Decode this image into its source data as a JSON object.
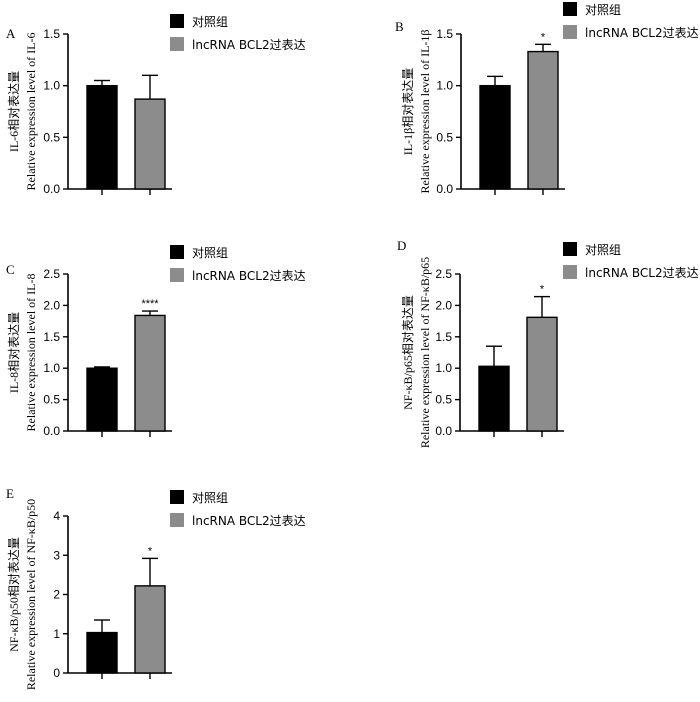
{
  "legend": {
    "control": "对照组",
    "overexpression": "lncRNA BCL2过表达"
  },
  "colors": {
    "control": "#000000",
    "overexpression": "#8c8c8c",
    "stroke": "#000000"
  },
  "chart_data": [
    {
      "id": "A",
      "letter": "A",
      "type": "bar",
      "categories": [
        "对照组",
        "lncRNA BCL2过表达"
      ],
      "values": [
        1.0,
        0.87
      ],
      "errors": [
        0.05,
        0.23
      ],
      "ylim": [
        0,
        1.5
      ],
      "ticks": [
        "0.0",
        "0.5",
        "1.0",
        "1.5"
      ],
      "tick_values": [
        0,
        0.5,
        1.0,
        1.5
      ],
      "ylabel_line1": "IL-6相对表达量",
      "ylabel_line2": "Relative expression level of IL-6",
      "significance": [
        "",
        ""
      ]
    },
    {
      "id": "B",
      "letter": "B",
      "type": "bar",
      "categories": [
        "对照组",
        "lncRNA BCL2过表达"
      ],
      "values": [
        1.0,
        1.33
      ],
      "errors": [
        0.09,
        0.07
      ],
      "ylim": [
        0,
        1.5
      ],
      "ticks": [
        "0.0",
        "0.5",
        "1.0",
        "1.5"
      ],
      "tick_values": [
        0,
        0.5,
        1.0,
        1.5
      ],
      "ylabel_line1": "IL-1β相对表达量",
      "ylabel_line2": "Relative expression level of IL-1β",
      "significance": [
        "",
        "*"
      ]
    },
    {
      "id": "C",
      "letter": "C",
      "type": "bar",
      "categories": [
        "对照组",
        "lncRNA BCL2过表达"
      ],
      "values": [
        1.0,
        1.84
      ],
      "errors": [
        0.02,
        0.07
      ],
      "ylim": [
        0,
        2.5
      ],
      "ticks": [
        "0.0",
        "0.5",
        "1.0",
        "1.5",
        "2.0",
        "2.5"
      ],
      "tick_values": [
        0,
        0.5,
        1.0,
        1.5,
        2.0,
        2.5
      ],
      "ylabel_line1": "IL-8相对表达量",
      "ylabel_line2": "Relative expression level of IL-8",
      "significance": [
        "",
        "****"
      ]
    },
    {
      "id": "D",
      "letter": "D",
      "type": "bar",
      "categories": [
        "对照组",
        "lncRNA BCL2过表达"
      ],
      "values": [
        1.03,
        1.81
      ],
      "errors": [
        0.32,
        0.33
      ],
      "ylim": [
        0,
        2.5
      ],
      "ticks": [
        "0.0",
        "0.5",
        "1.0",
        "1.5",
        "2.0",
        "2.5"
      ],
      "tick_values": [
        0,
        0.5,
        1.0,
        1.5,
        2.0,
        2.5
      ],
      "ylabel_line1": "NF-κB/p65相对表达量",
      "ylabel_line2": "Relative expression level of NF-κB/p65",
      "significance": [
        "",
        "*"
      ]
    },
    {
      "id": "E",
      "letter": "E",
      "type": "bar",
      "categories": [
        "对照组",
        "lncRNA BCL2过表达"
      ],
      "values": [
        1.03,
        2.22
      ],
      "errors": [
        0.32,
        0.7
      ],
      "ylim": [
        0,
        4
      ],
      "ticks": [
        "0",
        "1",
        "2",
        "3",
        "4"
      ],
      "tick_values": [
        0,
        1,
        2,
        3,
        4
      ],
      "ylabel_line1": "NF-κB/p50相对表达量",
      "ylabel_line2": "Relative expression level of NF-κB/p50",
      "significance": [
        "",
        "*"
      ]
    }
  ]
}
